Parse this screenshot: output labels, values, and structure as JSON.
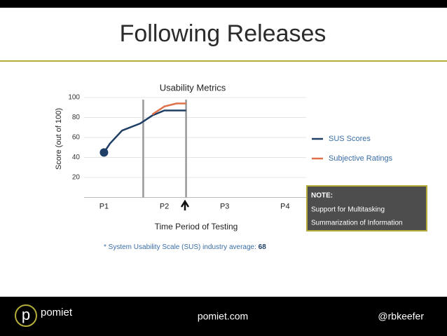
{
  "slide": {
    "title": "Following Releases",
    "footnote": "* System Usability Scale (SUS) industry average: ",
    "footnote_value": "68",
    "note": {
      "heading": "NOTE:",
      "lines": [
        "Support for Multitasking",
        "Summarization of Information"
      ]
    },
    "footer": {
      "brand": "pomiet",
      "site": "pomiet.com",
      "handle": "@rbkeefer"
    }
  },
  "chart_data": {
    "type": "line",
    "title": "Usability Metrics",
    "x_label": "Time Period of Testing",
    "y_label": "Score (out of 100)",
    "xlim": [
      0.67,
      4.35
    ],
    "xticks": [
      {
        "value": 1,
        "label": "P1"
      },
      {
        "value": 2,
        "label": "P2"
      },
      {
        "value": 3,
        "label": "P3"
      },
      {
        "value": 4,
        "label": "P4"
      }
    ],
    "ylim": [
      0,
      100
    ],
    "yticks": [
      20,
      40,
      60,
      80,
      100
    ],
    "grid": true,
    "reference_lines": [
      1.65,
      2.36
    ],
    "series": [
      {
        "name": "SUS Scores",
        "color": "#1f3f66",
        "x": [
          1,
          1.1,
          1.3,
          1.6,
          1.8,
          2.0,
          2.2,
          2.36
        ],
        "values": [
          45,
          54,
          67,
          74,
          82,
          87,
          87,
          87
        ]
      },
      {
        "name": "Subjective Ratings",
        "color": "#e0704a",
        "x": [
          1.8,
          2.0,
          2.2,
          2.36
        ],
        "values": [
          83,
          91,
          94,
          94
        ]
      }
    ],
    "marker": {
      "x": 1,
      "value": 45
    }
  }
}
